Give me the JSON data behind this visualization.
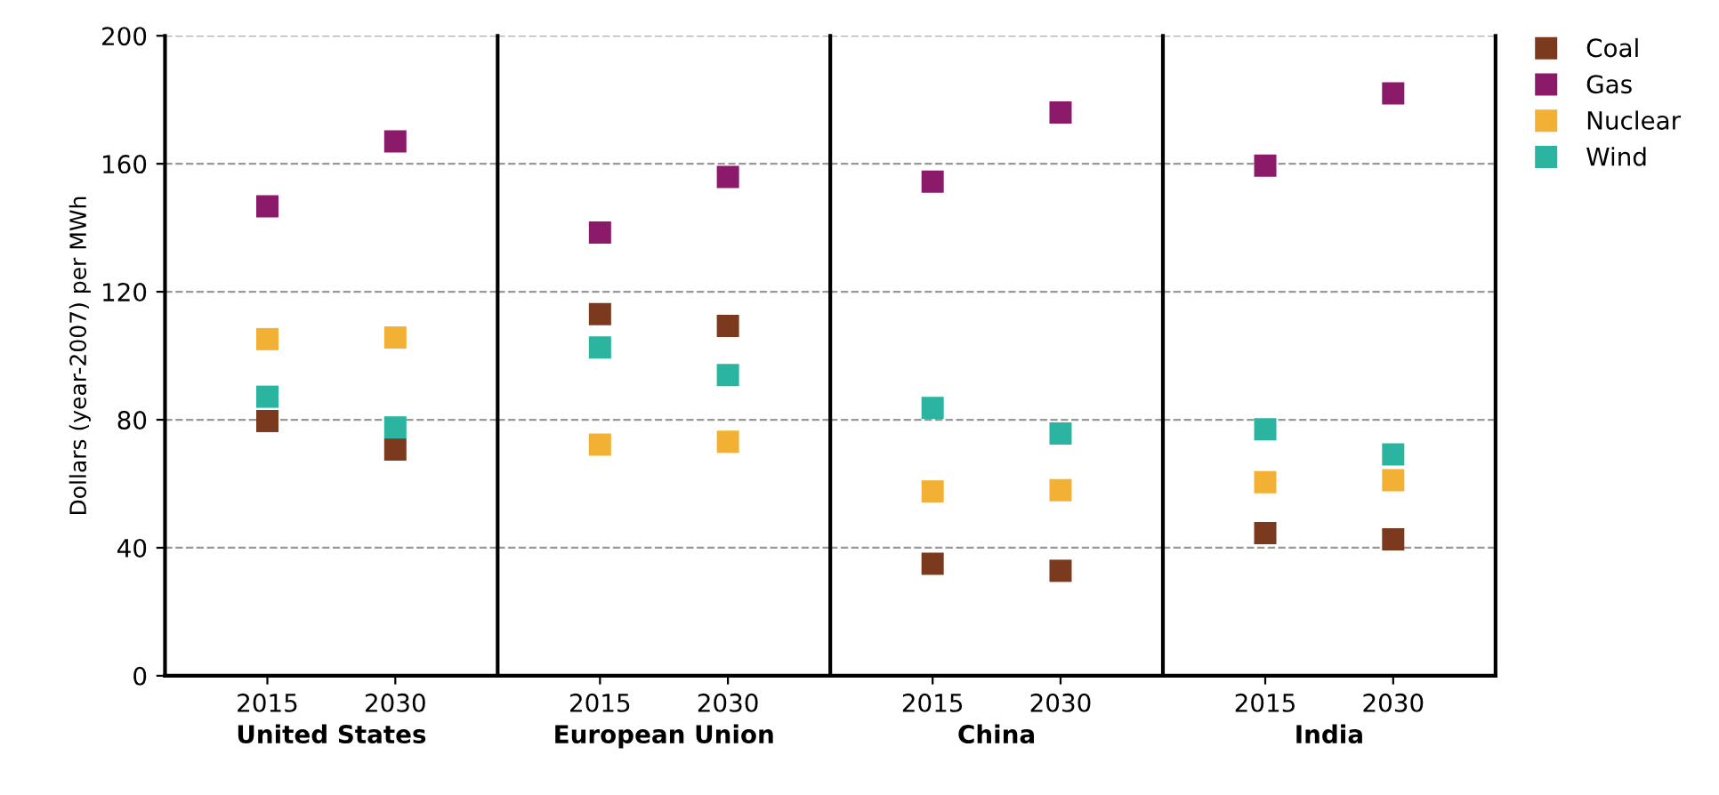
{
  "chart_data": [
    {
      "type": "scatter",
      "categories": [
        "2015",
        "2030"
      ],
      "xlabel": "United States",
      "ylabel": "Dollars (year-2007) per MWh",
      "ylim": [
        0,
        200
      ],
      "yticks": [
        0,
        40,
        80,
        120,
        160,
        200
      ],
      "grid": "y",
      "legend": "top right",
      "marker": "square",
      "series": [
        {
          "name": "Coal",
          "color": "#7b3a1e",
          "values": [
            79.6,
            70.7
          ]
        },
        {
          "name": "Gas",
          "color": "#8b1a6b",
          "values": [
            146.7,
            167
          ]
        },
        {
          "name": "Nuclear",
          "color": "#f2b134",
          "values": [
            105.2,
            105.7
          ]
        },
        {
          "name": "Wind",
          "color": "#2bb5a0",
          "values": [
            87.2,
            77.6
          ]
        }
      ]
    },
    {
      "type": "scatter",
      "categories": [
        "2015",
        "2030"
      ],
      "xlabel": "European Union",
      "ylim": [
        0,
        200
      ],
      "grid": "y",
      "tick_labels": "x",
      "marker": "square",
      "series": [
        {
          "color": "#7b3a1e",
          "values": [
            113,
            109.3
          ]
        },
        {
          "color": "#8b1a6b",
          "values": [
            138.5,
            155.9
          ]
        },
        {
          "color": "#f2b134",
          "values": [
            72.2,
            73.1
          ]
        },
        {
          "color": "#2bb5a0",
          "values": [
            102.6,
            94
          ]
        }
      ]
    },
    {
      "type": "scatter",
      "categories": [
        "2015",
        "2030"
      ],
      "xlabel": "China",
      "ylim": [
        0,
        200
      ],
      "grid": "y",
      "tick_labels": "x",
      "marker": "square",
      "series": [
        {
          "color": "#7b3a1e",
          "values": [
            35,
            32.8
          ]
        },
        {
          "color": "#8b1a6b",
          "values": [
            154.4,
            176
          ]
        },
        {
          "color": "#f2b134",
          "values": [
            57.6,
            58
          ]
        },
        {
          "color": "#2bb5a0",
          "values": [
            83.7,
            75.7
          ]
        }
      ]
    },
    {
      "type": "scatter",
      "categories": [
        "2015",
        "2030"
      ],
      "xlabel": "India",
      "ylim": [
        0,
        200
      ],
      "grid": "y",
      "tick_labels": "x",
      "marker": "square",
      "series": [
        {
          "color": "#7b3a1e",
          "values": [
            44.6,
            42.6
          ]
        },
        {
          "color": "#8b1a6b",
          "values": [
            159.4,
            182
          ]
        },
        {
          "color": "#f2b134",
          "values": [
            60.5,
            61.1
          ]
        },
        {
          "color": "#2bb5a0",
          "values": [
            77,
            69.2
          ]
        }
      ]
    }
  ]
}
